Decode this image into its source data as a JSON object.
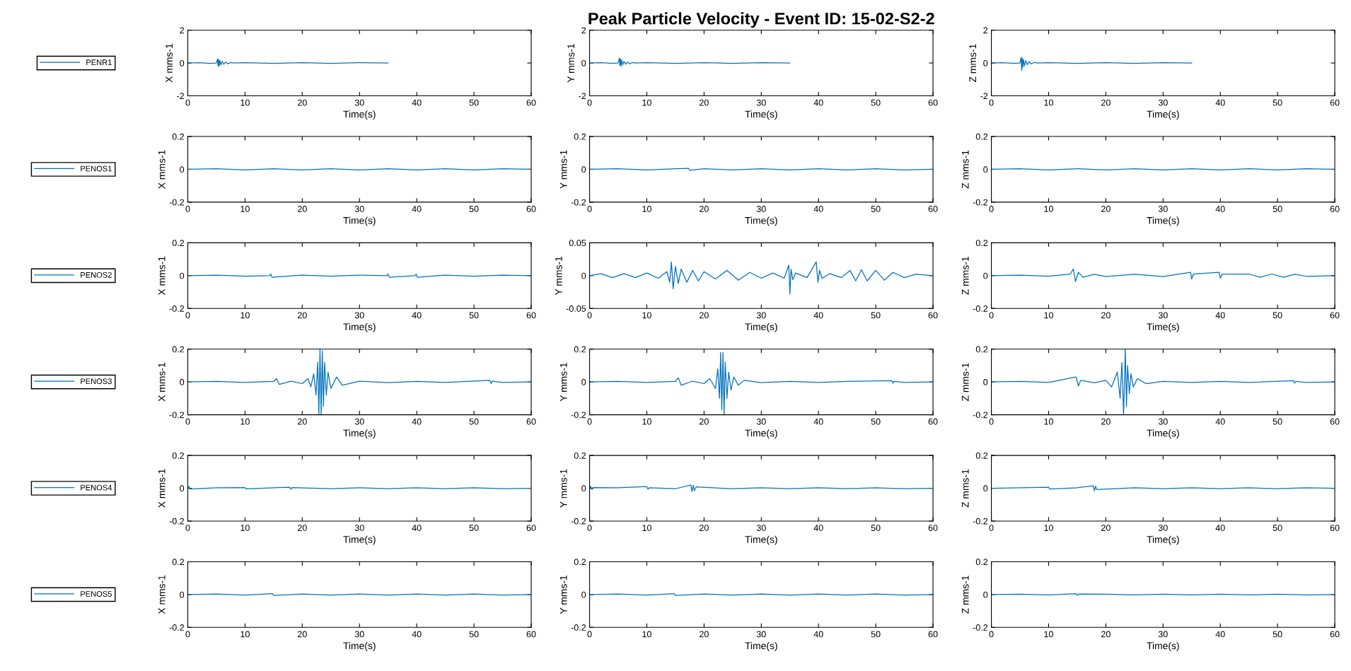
{
  "chart_data": [
    {
      "type": "line",
      "ylabel": "X mms-1",
      "xlabel": "Time(s)",
      "xlim": [
        0,
        60
      ],
      "xticks": [
        0,
        10,
        20,
        30,
        40,
        50,
        60
      ],
      "ylim": [
        -2,
        2
      ],
      "yticks": [
        -2,
        0,
        2
      ],
      "legend": "left",
      "marker": "none",
      "line_style": "solid",
      "grid": false,
      "series": [
        {
          "name": "PENR1",
          "color": "#0072bd",
          "x": [
            0,
            2,
            4,
            5,
            5.2,
            5.3,
            5.4,
            5.5,
            5.6,
            5.8,
            6,
            6.3,
            6.6,
            7,
            7.5,
            8,
            10,
            15,
            20,
            25,
            30,
            35
          ],
          "values": [
            0,
            0.02,
            -0.02,
            0,
            0.25,
            -0.2,
            0.22,
            -0.18,
            0.15,
            -0.12,
            0.1,
            -0.08,
            0.06,
            -0.05,
            0.03,
            0,
            0.02,
            -0.02,
            0.02,
            -0.02,
            0.02,
            0
          ]
        }
      ]
    },
    {
      "type": "line",
      "title": "Peak Particle Velocity - Event ID: 15-02-S2-2",
      "ylabel": "Y mms-1",
      "xlabel": "Time(s)",
      "xlim": [
        0,
        60
      ],
      "xticks": [
        0,
        10,
        20,
        30,
        40,
        50,
        60
      ],
      "ylim": [
        -2,
        2
      ],
      "yticks": [
        -2,
        0,
        2
      ],
      "marker": "none",
      "line_style": "solid",
      "grid": false,
      "series": [
        {
          "color": "#0072bd",
          "x": [
            0,
            2,
            4,
            5,
            5.2,
            5.3,
            5.4,
            5.5,
            5.6,
            5.8,
            6,
            6.3,
            6.6,
            7,
            7.5,
            8,
            10,
            15,
            20,
            25,
            30,
            35
          ],
          "values": [
            0,
            0.02,
            -0.02,
            0,
            0.3,
            -0.15,
            0.25,
            -0.2,
            0.18,
            -0.12,
            0.1,
            -0.08,
            0.06,
            -0.05,
            0.03,
            0,
            0.02,
            -0.02,
            0.02,
            -0.02,
            0.02,
            0
          ]
        }
      ]
    },
    {
      "type": "line",
      "ylabel": "Z mms-1",
      "xlabel": "Time(s)",
      "xlim": [
        0,
        60
      ],
      "xticks": [
        0,
        10,
        20,
        30,
        40,
        50,
        60
      ],
      "ylim": [
        -2,
        2
      ],
      "yticks": [
        -2,
        0,
        2
      ],
      "marker": "none",
      "line_style": "solid",
      "grid": false,
      "series": [
        {
          "color": "#0072bd",
          "x": [
            0,
            2,
            4,
            5,
            5.2,
            5.3,
            5.4,
            5.5,
            5.6,
            5.8,
            6,
            6.3,
            6.6,
            7,
            7.5,
            8,
            10,
            15,
            20,
            25,
            30,
            35
          ],
          "values": [
            0,
            0.02,
            -0.02,
            0,
            0.35,
            -0.45,
            0.3,
            -0.25,
            0.22,
            -0.18,
            0.15,
            -0.1,
            0.08,
            -0.06,
            0.04,
            0,
            0.02,
            -0.02,
            0.02,
            -0.02,
            0.02,
            0
          ]
        }
      ]
    },
    {
      "type": "line",
      "ylabel": "X mms-1",
      "xlabel": "Time(s)",
      "xlim": [
        0,
        60
      ],
      "xticks": [
        0,
        10,
        20,
        30,
        40,
        50,
        60
      ],
      "ylim": [
        -0.2,
        0.2
      ],
      "yticks": [
        -0.2,
        0,
        0.2
      ],
      "legend": "left",
      "marker": "none",
      "line_style": "solid",
      "grid": false,
      "series": [
        {
          "name": "PENOS1",
          "color": "#0072bd",
          "x": [
            0,
            5,
            10,
            15,
            20,
            25,
            30,
            35,
            40,
            45,
            50,
            55,
            60
          ],
          "values": [
            0,
            0.004,
            -0.004,
            0.004,
            -0.004,
            0.004,
            -0.004,
            0.004,
            -0.004,
            0.004,
            -0.004,
            0.004,
            0
          ]
        }
      ]
    },
    {
      "type": "line",
      "ylabel": "Y mms-1",
      "xlabel": "Time(s)",
      "xlim": [
        0,
        60
      ],
      "xticks": [
        0,
        10,
        20,
        30,
        40,
        50,
        60
      ],
      "ylim": [
        -0.2,
        0.2
      ],
      "yticks": [
        -0.2,
        0,
        0.2
      ],
      "marker": "none",
      "line_style": "solid",
      "grid": false,
      "series": [
        {
          "color": "#0072bd",
          "x": [
            0,
            5,
            10,
            15,
            17.3,
            17.5,
            20,
            25,
            30,
            35,
            40,
            45,
            50,
            55,
            60
          ],
          "values": [
            0,
            0.004,
            -0.004,
            0.004,
            0.006,
            -0.006,
            0.004,
            -0.004,
            0.004,
            -0.004,
            0.004,
            -0.004,
            0.004,
            -0.004,
            0
          ]
        }
      ]
    },
    {
      "type": "line",
      "ylabel": "Z mms-1",
      "xlabel": "Time(s)",
      "xlim": [
        0,
        60
      ],
      "xticks": [
        0,
        10,
        20,
        30,
        40,
        50,
        60
      ],
      "ylim": [
        -0.2,
        0.2
      ],
      "yticks": [
        -0.2,
        0,
        0.2
      ],
      "marker": "none",
      "line_style": "solid",
      "grid": false,
      "series": [
        {
          "color": "#0072bd",
          "x": [
            0,
            5,
            10,
            15,
            20,
            25,
            30,
            35,
            40,
            45,
            50,
            55,
            60
          ],
          "values": [
            0,
            0.004,
            -0.004,
            0.004,
            -0.004,
            0.004,
            -0.004,
            0.004,
            -0.004,
            0.004,
            -0.004,
            0.004,
            0
          ]
        }
      ]
    },
    {
      "type": "line",
      "ylabel": "X mms-1",
      "xlabel": "Time(s)",
      "xlim": [
        0,
        60
      ],
      "xticks": [
        0,
        10,
        20,
        30,
        40,
        50,
        60
      ],
      "ylim": [
        -0.2,
        0.2
      ],
      "yticks": [
        -0.2,
        0,
        0.2
      ],
      "legend": "left",
      "marker": "none",
      "line_style": "solid",
      "grid": false,
      "series": [
        {
          "name": "PENOS2",
          "color": "#0072bd",
          "x": [
            0,
            5,
            10,
            14.3,
            14.5,
            14.7,
            20,
            25,
            30,
            34.8,
            35,
            35.2,
            39.7,
            39.9,
            40.1,
            45,
            50,
            55,
            60
          ],
          "values": [
            0,
            0.003,
            -0.003,
            0,
            0.01,
            -0.01,
            0.003,
            -0.003,
            0.003,
            0,
            0.01,
            -0.01,
            0,
            0.01,
            -0.01,
            0.003,
            -0.003,
            0.003,
            0
          ]
        }
      ]
    },
    {
      "type": "line",
      "ylabel": "Y mms-1",
      "xlabel": "Time(s)",
      "xlim": [
        0,
        60
      ],
      "xticks": [
        0,
        10,
        20,
        30,
        40,
        50,
        60
      ],
      "ylim": [
        -0.05,
        0.05
      ],
      "yticks": [
        -0.05,
        0,
        0.05
      ],
      "marker": "none",
      "line_style": "solid",
      "grid": false,
      "series": [
        {
          "color": "#0072bd",
          "x": [
            0,
            2,
            4,
            6,
            8,
            10,
            12,
            13.5,
            14,
            14.3,
            14.6,
            15,
            15.5,
            16,
            17,
            18,
            19,
            20,
            22,
            24,
            26,
            28,
            30,
            32,
            34,
            34.8,
            35,
            35.2,
            35.5,
            36,
            38,
            39.6,
            39.9,
            40.2,
            40.6,
            42,
            44,
            45.5,
            46.5,
            47.5,
            48.5,
            50,
            51.5,
            53,
            55,
            57,
            60
          ],
          "values": [
            0,
            0.003,
            -0.003,
            0.003,
            -0.003,
            0.004,
            -0.004,
            0.006,
            -0.01,
            0.021,
            -0.02,
            0.014,
            -0.012,
            0.01,
            -0.01,
            0.008,
            -0.008,
            0.006,
            -0.005,
            0.008,
            -0.007,
            0.005,
            -0.004,
            0.004,
            -0.004,
            0.016,
            -0.028,
            0.01,
            -0.006,
            0.004,
            -0.003,
            0.021,
            -0.01,
            0.008,
            -0.004,
            0.003,
            -0.003,
            0.008,
            -0.008,
            0.009,
            -0.008,
            0.008,
            -0.007,
            0.005,
            -0.003,
            0.002,
            0
          ]
        }
      ]
    },
    {
      "type": "line",
      "ylabel": "Z mms-1",
      "xlabel": "Time(s)",
      "xlim": [
        0,
        60
      ],
      "xticks": [
        0,
        10,
        20,
        30,
        40,
        50,
        60
      ],
      "ylim": [
        -0.2,
        0.2
      ],
      "yticks": [
        -0.2,
        0,
        0.2
      ],
      "marker": "none",
      "line_style": "solid",
      "grid": false,
      "series": [
        {
          "color": "#0072bd",
          "x": [
            0,
            5,
            10,
            13.8,
            14.3,
            14.7,
            15.2,
            16,
            18,
            20,
            25,
            30,
            34.8,
            35,
            35.3,
            39.8,
            40,
            40.3,
            45,
            47,
            49,
            51,
            53,
            55,
            60
          ],
          "values": [
            0,
            0.003,
            -0.003,
            0.01,
            0.04,
            -0.035,
            0.02,
            -0.01,
            0.008,
            -0.006,
            0.008,
            -0.006,
            0.02,
            -0.02,
            0.01,
            0.02,
            -0.015,
            0.008,
            0.01,
            -0.01,
            0.01,
            -0.01,
            0.008,
            -0.004,
            0
          ]
        }
      ]
    },
    {
      "type": "line",
      "ylabel": "X mms-1",
      "xlabel": "Time(s)",
      "xlim": [
        0,
        60
      ],
      "xticks": [
        0,
        10,
        20,
        30,
        40,
        50,
        60
      ],
      "ylim": [
        -0.2,
        0.2
      ],
      "yticks": [
        -0.2,
        0,
        0.2
      ],
      "legend": "left",
      "marker": "none",
      "line_style": "solid",
      "grid": false,
      "series": [
        {
          "name": "PENOS3",
          "color": "#0072bd",
          "x": [
            0,
            5,
            10,
            15,
            15.5,
            16,
            18,
            20,
            21,
            21.5,
            22,
            22.4,
            22.7,
            22.9,
            23.1,
            23.3,
            23.5,
            23.7,
            23.9,
            24.2,
            24.5,
            25,
            26,
            27,
            30,
            35,
            40,
            45,
            52.8,
            53,
            53.2,
            55,
            60
          ],
          "values": [
            0,
            0.003,
            -0.003,
            0.003,
            0.02,
            -0.015,
            0.005,
            -0.01,
            0.02,
            -0.03,
            0.05,
            -0.08,
            0.12,
            -0.2,
            0.2,
            -0.2,
            0.19,
            -0.15,
            0.12,
            -0.08,
            0.06,
            -0.04,
            0.03,
            -0.02,
            0.005,
            -0.004,
            0.004,
            -0.003,
            0.01,
            -0.01,
            0.005,
            -0.003,
            0
          ]
        }
      ]
    },
    {
      "type": "line",
      "ylabel": "Y mms-1",
      "xlabel": "Time(s)",
      "xlim": [
        0,
        60
      ],
      "xticks": [
        0,
        10,
        20,
        30,
        40,
        50,
        60
      ],
      "ylim": [
        -0.2,
        0.2
      ],
      "yticks": [
        -0.2,
        0,
        0.2
      ],
      "marker": "none",
      "line_style": "solid",
      "grid": false,
      "series": [
        {
          "color": "#0072bd",
          "x": [
            0,
            5,
            10,
            15,
            15.5,
            16,
            18,
            20,
            21,
            22,
            22.4,
            22.7,
            22.9,
            23.1,
            23.3,
            23.5,
            23.7,
            24,
            24.3,
            24.7,
            25.2,
            26,
            27,
            30,
            35,
            40,
            45,
            52.8,
            53,
            53.2,
            55,
            60
          ],
          "values": [
            0,
            0.003,
            -0.003,
            0.003,
            0.025,
            -0.02,
            0.005,
            -0.01,
            0.02,
            -0.04,
            0.08,
            -0.1,
            0.18,
            -0.17,
            0.18,
            -0.2,
            0.12,
            -0.1,
            0.06,
            -0.05,
            0.03,
            -0.02,
            0.01,
            -0.004,
            0.003,
            -0.003,
            0.003,
            0.008,
            -0.008,
            0.004,
            -0.003,
            0
          ]
        }
      ]
    },
    {
      "type": "line",
      "ylabel": "Z mms-1",
      "xlabel": "Time(s)",
      "xlim": [
        0,
        60
      ],
      "xticks": [
        0,
        10,
        20,
        30,
        40,
        50,
        60
      ],
      "ylim": [
        -0.2,
        0.2
      ],
      "yticks": [
        -0.2,
        0,
        0.2
      ],
      "marker": "none",
      "line_style": "solid",
      "grid": false,
      "series": [
        {
          "color": "#0072bd",
          "x": [
            0,
            5,
            10,
            14.8,
            15.2,
            15.6,
            18,
            20,
            21,
            22,
            22.5,
            22.8,
            23.1,
            23.4,
            23.6,
            23.8,
            24.1,
            24.4,
            24.8,
            25.5,
            27,
            30,
            35,
            40,
            45,
            52.8,
            53,
            53.2,
            55,
            60
          ],
          "values": [
            0,
            0.003,
            -0.003,
            0.03,
            -0.025,
            0.01,
            -0.005,
            0.01,
            -0.03,
            0.06,
            -0.1,
            0.12,
            -0.2,
            0.2,
            -0.15,
            0.1,
            -0.07,
            0.05,
            -0.03,
            0.02,
            -0.01,
            0.004,
            -0.003,
            0.003,
            -0.003,
            0.008,
            -0.008,
            0.004,
            -0.003,
            0
          ]
        }
      ]
    },
    {
      "type": "line",
      "ylabel": "X mms-1",
      "xlabel": "Time(s)",
      "xlim": [
        0,
        60
      ],
      "xticks": [
        0,
        10,
        20,
        30,
        40,
        50,
        60
      ],
      "ylim": [
        -0.2,
        0.2
      ],
      "yticks": [
        -0.2,
        0,
        0.2
      ],
      "legend": "left",
      "marker": "none",
      "line_style": "solid",
      "grid": false,
      "series": [
        {
          "name": "PENOS4",
          "color": "#0072bd",
          "x": [
            0,
            0.2,
            0.4,
            5,
            10,
            10.2,
            15,
            17.8,
            18,
            18.2,
            25,
            30,
            35,
            40,
            45,
            50,
            55,
            60
          ],
          "values": [
            0,
            0.01,
            -0.005,
            0.003,
            0.004,
            -0.004,
            0.003,
            0.006,
            -0.006,
            0.004,
            -0.003,
            0.003,
            -0.003,
            0.003,
            -0.003,
            0.003,
            -0.003,
            0
          ]
        }
      ]
    },
    {
      "type": "line",
      "ylabel": "Y mms-1",
      "xlabel": "Time(s)",
      "xlim": [
        0,
        60
      ],
      "xticks": [
        0,
        10,
        20,
        30,
        40,
        50,
        60
      ],
      "ylim": [
        -0.2,
        0.2
      ],
      "yticks": [
        -0.2,
        0,
        0.2
      ],
      "marker": "none",
      "line_style": "solid",
      "grid": false,
      "series": [
        {
          "color": "#0072bd",
          "x": [
            0,
            0.2,
            0.4,
            0.6,
            5,
            10,
            10.2,
            10.4,
            15,
            17.7,
            17.9,
            18.1,
            18.3,
            18.6,
            25,
            30,
            35,
            40,
            45,
            50,
            55,
            60
          ],
          "values": [
            0,
            0.012,
            -0.008,
            0.004,
            0.003,
            0.01,
            -0.006,
            0.003,
            -0.003,
            0.02,
            -0.02,
            0.018,
            -0.015,
            0.008,
            -0.003,
            0.003,
            -0.003,
            0.003,
            -0.003,
            0.003,
            -0.003,
            0
          ]
        }
      ]
    },
    {
      "type": "line",
      "ylabel": "Z mms-1",
      "xlabel": "Time(s)",
      "xlim": [
        0,
        60
      ],
      "xticks": [
        0,
        10,
        20,
        30,
        40,
        50,
        60
      ],
      "ylim": [
        -0.2,
        0.2
      ],
      "yticks": [
        -0.2,
        0,
        0.2
      ],
      "marker": "none",
      "line_style": "solid",
      "grid": false,
      "series": [
        {
          "color": "#0072bd",
          "x": [
            0,
            5,
            10,
            10.2,
            15,
            17.8,
            18,
            18.2,
            18.4,
            25,
            30,
            35,
            40,
            45,
            50,
            55,
            60
          ],
          "values": [
            0,
            0.003,
            0.006,
            -0.005,
            0.003,
            0.015,
            -0.015,
            0.012,
            -0.008,
            0.003,
            -0.003,
            0.003,
            -0.003,
            0.003,
            -0.003,
            0.003,
            0
          ]
        }
      ]
    },
    {
      "type": "line",
      "ylabel": "X mms-1",
      "xlabel": "Time(s)",
      "xlim": [
        0,
        60
      ],
      "xticks": [
        0,
        10,
        20,
        30,
        40,
        50,
        60
      ],
      "ylim": [
        -0.2,
        0.2
      ],
      "yticks": [
        -0.2,
        0,
        0.2
      ],
      "legend": "left",
      "marker": "none",
      "line_style": "solid",
      "grid": false,
      "series": [
        {
          "name": "PENOS5",
          "color": "#0072bd",
          "x": [
            0,
            5,
            10,
            14.8,
            15,
            20,
            25,
            30,
            35,
            40,
            45,
            50,
            55,
            60
          ],
          "values": [
            0,
            0.003,
            -0.003,
            0.005,
            -0.005,
            0.003,
            -0.003,
            0.003,
            -0.003,
            0.003,
            -0.003,
            0.003,
            -0.003,
            0
          ]
        }
      ]
    },
    {
      "type": "line",
      "ylabel": "Y mms-1",
      "xlabel": "Time(s)",
      "xlim": [
        0,
        60
      ],
      "xticks": [
        0,
        10,
        20,
        30,
        40,
        50,
        60
      ],
      "ylim": [
        -0.2,
        0.2
      ],
      "yticks": [
        -0.2,
        0,
        0.2
      ],
      "marker": "none",
      "line_style": "solid",
      "grid": false,
      "series": [
        {
          "color": "#0072bd",
          "x": [
            0,
            5,
            10,
            14.8,
            15,
            20,
            25,
            30,
            35,
            40,
            45,
            50,
            55,
            60
          ],
          "values": [
            0,
            0.003,
            -0.003,
            0.005,
            -0.005,
            0.003,
            -0.003,
            0.003,
            -0.003,
            0.003,
            -0.003,
            0.003,
            -0.003,
            0
          ]
        }
      ]
    },
    {
      "type": "line",
      "ylabel": "Z mms-1",
      "xlabel": "Time(s)",
      "xlim": [
        0,
        60
      ],
      "xticks": [
        0,
        10,
        20,
        30,
        40,
        50,
        60
      ],
      "ylim": [
        -0.2,
        0.2
      ],
      "yticks": [
        -0.2,
        0,
        0.2
      ],
      "marker": "none",
      "line_style": "solid",
      "grid": false,
      "series": [
        {
          "color": "#0072bd",
          "x": [
            0,
            5,
            10,
            14.8,
            15,
            15.2,
            20,
            25,
            30,
            35,
            40,
            45,
            50,
            55,
            60
          ],
          "values": [
            0,
            0.002,
            -0.002,
            0.005,
            -0.005,
            0.003,
            0.002,
            -0.002,
            0.002,
            -0.002,
            0.002,
            -0.002,
            0.002,
            -0.002,
            0
          ]
        }
      ]
    }
  ]
}
